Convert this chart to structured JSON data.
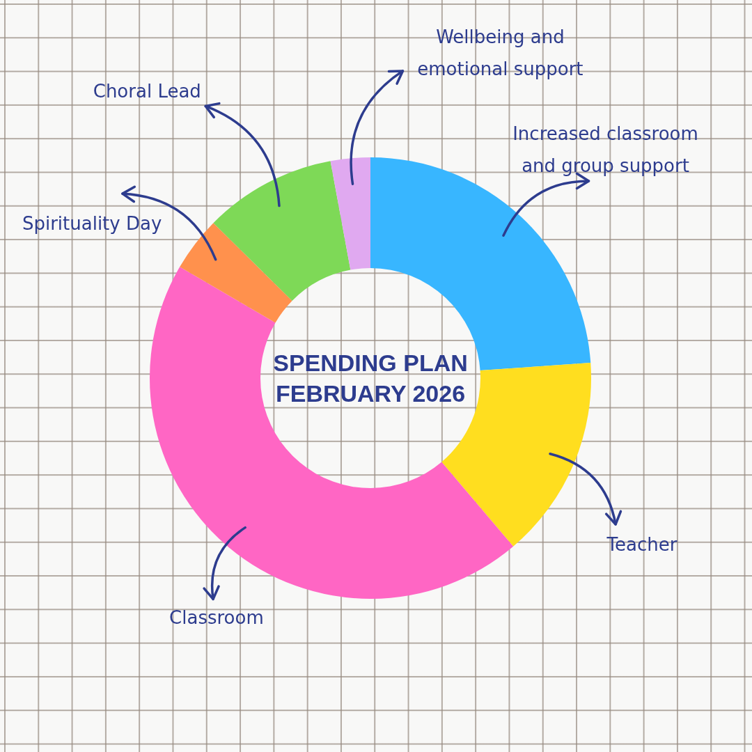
{
  "chart_data": {
    "type": "donut",
    "title": "SPENDING PLAN FEBRUARY 2026",
    "categories": [
      "Increased classroom and group support",
      "Teacher",
      "Classroom",
      "Spirituality Day",
      "Choral Lead",
      "Wellbeing and emotional support"
    ],
    "values": [
      23.9,
      14.9,
      44.6,
      4.0,
      9.7,
      2.9
    ],
    "colors": [
      "#38b6ff",
      "#ffde1f",
      "#ff66c4",
      "#ff914d",
      "#7ed957",
      "#e0a9f0"
    ]
  }
}
